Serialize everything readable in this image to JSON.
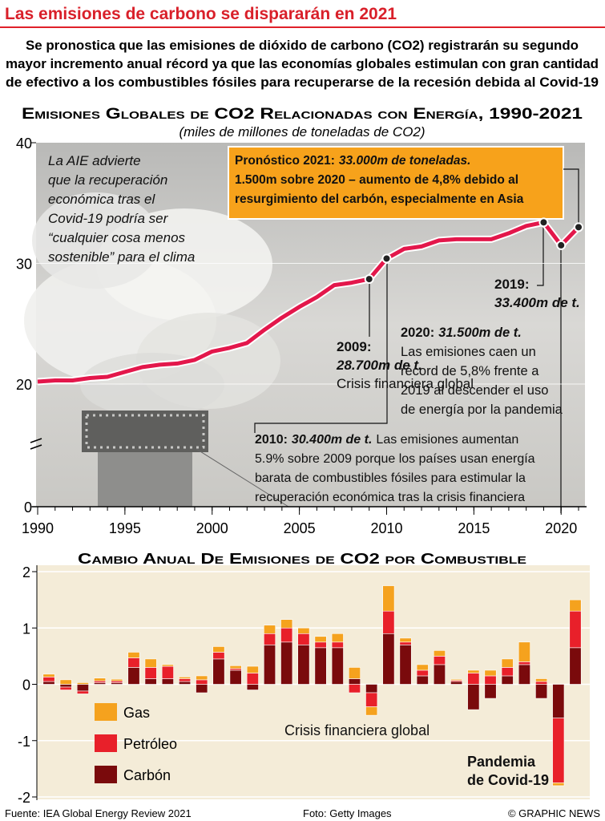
{
  "header": {
    "title": "Las emisiones de carbono se dispararán en 2021",
    "subtitle": [
      "Se pronostica que las emisiones de dióxido de carbono (CO2) registrarán su segundo",
      "mayor incremento anual récord ya que las economías globales estimulan con gran cantidad",
      "de efectivo a los combustibles fósiles para recuperarse de la recesión debida al Covid-19"
    ]
  },
  "chart_data": [
    {
      "type": "line",
      "title": "Emisiones Globales de CO2 Relacionadas con Energía, 1990-2021",
      "subtitle": "(miles de millones de toneladas de CO2)",
      "x": [
        1990,
        1991,
        1992,
        1993,
        1994,
        1995,
        1996,
        1997,
        1998,
        1999,
        2000,
        2001,
        2002,
        2003,
        2004,
        2005,
        2006,
        2007,
        2008,
        2009,
        2010,
        2011,
        2012,
        2013,
        2014,
        2015,
        2016,
        2017,
        2018,
        2019,
        2020,
        2021
      ],
      "series": [
        {
          "name": "Emisiones",
          "color": "#e3174b",
          "values": [
            20.2,
            20.3,
            20.3,
            20.5,
            20.6,
            21.0,
            21.4,
            21.6,
            21.7,
            22.0,
            22.7,
            23.0,
            23.4,
            24.5,
            25.5,
            26.4,
            27.2,
            28.2,
            28.4,
            28.7,
            30.4,
            31.2,
            31.4,
            31.9,
            32.0,
            32.0,
            32.0,
            32.5,
            33.1,
            33.4,
            31.5,
            33.0
          ]
        }
      ],
      "markers": [
        2009,
        2010,
        2019,
        2020,
        2021
      ],
      "xlim": [
        1990,
        2021
      ],
      "xticks": [
        1990,
        1995,
        2000,
        2005,
        2010,
        2015,
        2020
      ],
      "ylim": [
        0,
        40
      ],
      "yticks": [
        0,
        20,
        30,
        40
      ],
      "axis_break": true,
      "grid": true,
      "annotations": [
        {
          "style": "italic",
          "lines": [
            "La AIE advierte",
            "que la recuperación",
            "económica tras el",
            "Covid-19 podría ser",
            "“cualquier cosa menos",
            "sostenible” para el clima"
          ]
        },
        {
          "style": "box",
          "lines": [
            {
              "bold": "Pronóstico 2021:",
              "bold_italic": "33.000m de toneladas."
            },
            "1.500m sobre 2020 – aumento de 4,8% debido al",
            "resurgimiento del carbón, especialmente en Asia"
          ]
        },
        {
          "style": "plain",
          "lines": [
            {
              "bold": "2019:"
            },
            {
              "bold_italic": "33.400m de t."
            }
          ]
        },
        {
          "style": "plain",
          "lines": [
            {
              "bold": "2009:"
            },
            {
              "bold_italic": "28.700m de t."
            },
            "Crisis financiera global"
          ]
        },
        {
          "style": "plain",
          "lines": [
            {
              "bold": "2020:",
              "bold_italic": "31.500m de t."
            },
            "Las emisiones caen un",
            "récord de 5,8% frente a",
            "2019 al descender el uso",
            "de energía por la pandemia"
          ]
        },
        {
          "style": "plain",
          "lines": [
            {
              "bold": "2010:",
              "bold_italic": "30.400m de t.",
              "text": "Las emisiones aumentan"
            },
            "5.9% sobre 2009 porque los países usan energía",
            "barata de combustibles fósiles para estimular la",
            "recuperación económica tras la crisis financiera"
          ]
        }
      ]
    },
    {
      "type": "stacked_bar",
      "title": "Cambio Anual De Emisiones de CO2 por Combustible",
      "x": [
        1990,
        1991,
        1992,
        1993,
        1994,
        1995,
        1996,
        1997,
        1998,
        1999,
        2000,
        2001,
        2002,
        2003,
        2004,
        2005,
        2006,
        2007,
        2008,
        2009,
        2010,
        2011,
        2012,
        2013,
        2014,
        2015,
        2016,
        2017,
        2018,
        2019,
        2020,
        2021
      ],
      "series": [
        {
          "name": "Carbón",
          "color": "#7a0a0c",
          "values": [
            0.05,
            -0.05,
            -0.12,
            0.03,
            0.03,
            0.3,
            0.1,
            0.1,
            0.05,
            -0.15,
            0.45,
            0.25,
            -0.1,
            0.7,
            0.75,
            0.7,
            0.65,
            0.65,
            0.1,
            -0.15,
            0.9,
            0.7,
            0.15,
            0.35,
            0.05,
            -0.45,
            -0.25,
            0.15,
            0.35,
            -0.25,
            -0.6,
            0.65
          ]
        },
        {
          "name": "Petróleo",
          "color": "#e8202a",
          "values": [
            0.08,
            -0.05,
            -0.05,
            0.03,
            0.03,
            0.17,
            0.2,
            0.22,
            0.05,
            0.08,
            0.12,
            0.03,
            0.2,
            0.2,
            0.25,
            0.2,
            0.1,
            0.1,
            -0.15,
            -0.25,
            0.4,
            0.05,
            0.1,
            0.15,
            0.02,
            0.2,
            0.15,
            0.15,
            0.05,
            0.05,
            -1.15,
            0.65
          ]
        },
        {
          "name": "Gas",
          "color": "#f5a21e",
          "values": [
            0.05,
            0.08,
            0.03,
            0.05,
            0.03,
            0.1,
            0.15,
            0.03,
            0.03,
            0.07,
            0.1,
            0.05,
            0.12,
            0.15,
            0.15,
            0.1,
            0.1,
            0.15,
            0.2,
            -0.15,
            0.45,
            0.07,
            0.1,
            0.1,
            0.02,
            0.05,
            0.1,
            0.15,
            0.35,
            0.05,
            -0.05,
            0.2
          ]
        }
      ],
      "xlim": [
        1990,
        2021
      ],
      "ylim": [
        -2,
        2
      ],
      "yticks": [
        -2,
        -1,
        0,
        1,
        2
      ],
      "grid": true,
      "annotations": [
        {
          "style": "plain",
          "lines": [
            "Crisis financiera global"
          ]
        },
        {
          "style": "bold",
          "lines": [
            "Pandemia",
            "de Covid-19"
          ]
        }
      ]
    }
  ],
  "footer": {
    "source": "Fuente: IEA Global Energy Review 2021",
    "photo": "Foto: Getty Images",
    "credit": "© GRAPHIC NEWS"
  }
}
